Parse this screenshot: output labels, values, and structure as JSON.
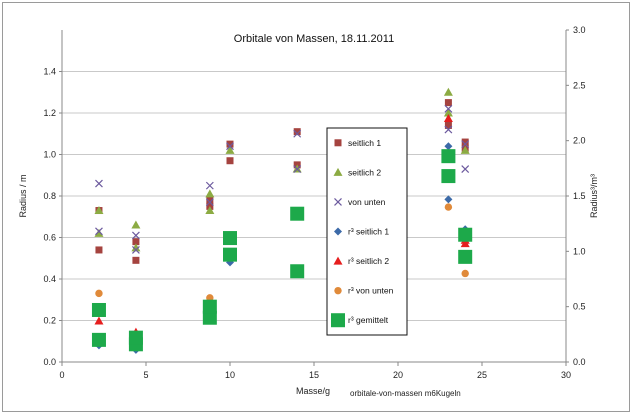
{
  "chart_data": {
    "type": "scatter",
    "title": "Orbitale von Massen, 18.11.2011",
    "xlabel": "Masse/g",
    "ylabel": "Radius / m",
    "y2label": "Radius³/m³",
    "caption": "orbitale-von-massen m6Kugeln",
    "xlim": [
      0,
      30
    ],
    "ylim": [
      0,
      1.6
    ],
    "y2lim": [
      0,
      3.0
    ],
    "x_ticks": [
      "0",
      "5",
      "10",
      "15",
      "20",
      "25",
      "30"
    ],
    "y_ticks": [
      "0.0",
      "0.2",
      "0.4",
      "0.6",
      "0.8",
      "1.0",
      "1.2",
      "1.4"
    ],
    "y2_ticks": [
      "0.0",
      "0.5",
      "1.0",
      "1.5",
      "2.0",
      "2.5",
      "3.0"
    ],
    "grid": "horizontal",
    "legend_position": "center-right",
    "series": [
      {
        "name": "seitlich 1",
        "axis": "left",
        "marker": "square",
        "color": "#a5433f",
        "points": [
          [
            2.2,
            0.54
          ],
          [
            2.2,
            0.73
          ],
          [
            4.4,
            0.49
          ],
          [
            4.4,
            0.58
          ],
          [
            8.8,
            0.75
          ],
          [
            8.8,
            0.78
          ],
          [
            10.0,
            0.97
          ],
          [
            10.0,
            1.05
          ],
          [
            14.0,
            0.95
          ],
          [
            14.0,
            1.11
          ],
          [
            23.0,
            1.14
          ],
          [
            23.0,
            1.25
          ],
          [
            24.0,
            1.03
          ],
          [
            24.0,
            1.06
          ]
        ]
      },
      {
        "name": "seitlich 2",
        "axis": "left",
        "marker": "triangle",
        "color": "#8cab43",
        "points": [
          [
            2.2,
            0.62
          ],
          [
            2.2,
            0.73
          ],
          [
            4.4,
            0.55
          ],
          [
            4.4,
            0.66
          ],
          [
            8.8,
            0.73
          ],
          [
            8.8,
            0.81
          ],
          [
            10.0,
            1.02
          ],
          [
            14.0,
            0.93
          ],
          [
            23.0,
            1.2
          ],
          [
            23.0,
            1.3
          ],
          [
            24.0,
            1.02
          ]
        ]
      },
      {
        "name": "von unten",
        "axis": "left",
        "marker": "x",
        "color": "#6c5a9e",
        "points": [
          [
            2.2,
            0.63
          ],
          [
            2.2,
            0.86
          ],
          [
            4.4,
            0.54
          ],
          [
            4.4,
            0.61
          ],
          [
            8.8,
            0.77
          ],
          [
            8.8,
            0.85
          ],
          [
            10.0,
            1.04
          ],
          [
            14.0,
            0.93
          ],
          [
            14.0,
            1.1
          ],
          [
            23.0,
            1.22
          ],
          [
            23.0,
            1.12
          ],
          [
            24.0,
            0.93
          ],
          [
            24.0,
            1.05
          ]
        ]
      },
      {
        "name": "r³ seitlich 1",
        "axis": "right",
        "marker": "diamond",
        "color": "#3c6aa8",
        "points": [
          [
            2.2,
            0.15
          ],
          [
            4.4,
            0.11
          ],
          [
            8.8,
            0.42
          ],
          [
            10.0,
            0.9
          ],
          [
            14.0,
            0.82
          ],
          [
            23.0,
            1.95
          ],
          [
            23.0,
            1.47
          ],
          [
            24.0,
            1.2
          ]
        ]
      },
      {
        "name": "r³ seitlich 2",
        "axis": "right",
        "marker": "triangle",
        "color": "#e61e1e",
        "points": [
          [
            2.2,
            0.37
          ],
          [
            4.4,
            0.27
          ],
          [
            8.8,
            0.4
          ],
          [
            23.0,
            2.2
          ],
          [
            24.0,
            1.07
          ],
          [
            24.0,
            1.1
          ]
        ]
      },
      {
        "name": "r³ von unten",
        "axis": "right",
        "marker": "circle",
        "color": "#e08a3a",
        "points": [
          [
            2.2,
            0.62
          ],
          [
            8.8,
            0.58
          ],
          [
            23.0,
            1.4
          ],
          [
            24.0,
            0.8
          ]
        ]
      },
      {
        "name": "r³ gemittelt",
        "axis": "right",
        "marker": "bigsquare",
        "color": "#1da94a",
        "points": [
          [
            2.2,
            0.2
          ],
          [
            2.2,
            0.47
          ],
          [
            4.4,
            0.16
          ],
          [
            4.4,
            0.22
          ],
          [
            8.8,
            0.4
          ],
          [
            8.8,
            0.5
          ],
          [
            10.0,
            0.97
          ],
          [
            10.0,
            1.12
          ],
          [
            14.0,
            0.82
          ],
          [
            14.0,
            1.34
          ],
          [
            23.0,
            1.68
          ],
          [
            23.0,
            1.86
          ],
          [
            24.0,
            0.95
          ],
          [
            24.0,
            1.15
          ]
        ]
      }
    ]
  }
}
